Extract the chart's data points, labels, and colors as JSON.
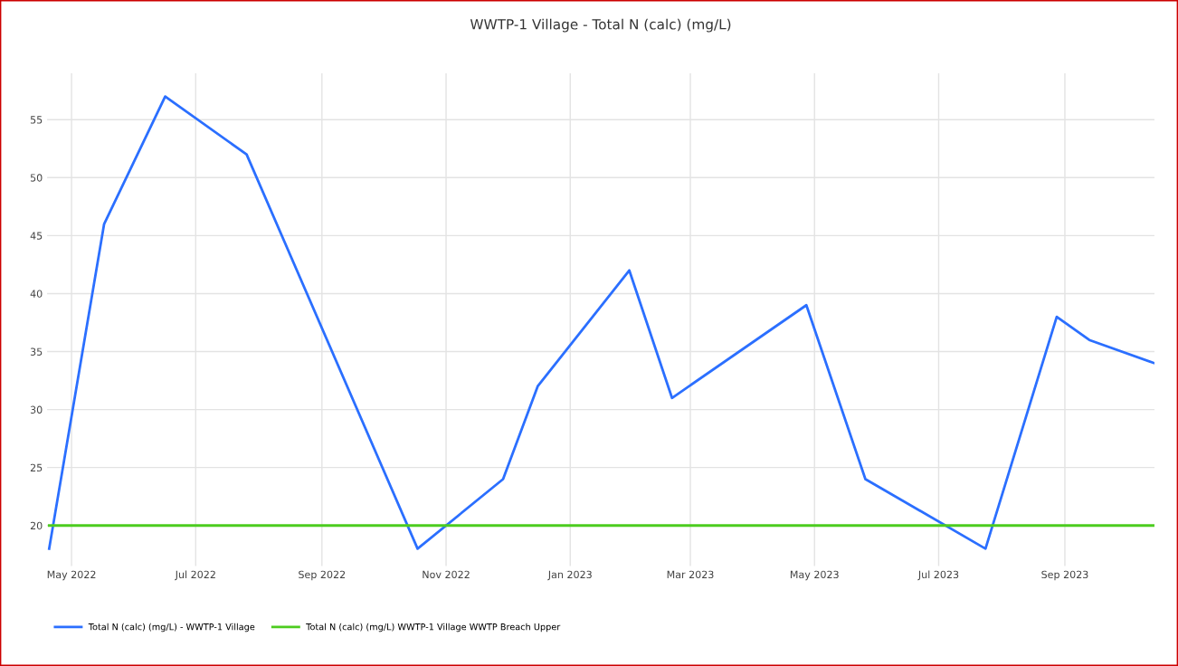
{
  "chart_data": {
    "type": "line",
    "title": "WWTP-1 Village - Total N (calc) (mg/L)",
    "series": [
      {
        "name": "Total N (calc) (mg/L) - WWTP-1 Village",
        "color": "#2b6fff",
        "x": [
          "2022-04-20",
          "2022-05-17",
          "2022-06-16",
          "2022-07-26",
          "2022-10-18",
          "2022-11-29",
          "2022-12-16",
          "2023-01-30",
          "2023-02-20",
          "2023-04-27",
          "2023-05-26",
          "2023-07-24",
          "2023-08-28",
          "2023-09-13",
          "2023-10-15"
        ],
        "values": [
          18,
          46,
          57,
          52,
          18,
          24,
          32,
          42,
          31,
          39,
          24,
          18,
          38,
          36,
          34
        ]
      },
      {
        "name": "Total N (calc) (mg/L) WWTP-1 Village WWTP Breach Upper",
        "color": "#4ccc1f",
        "x": [
          "2022-04-20",
          "2023-10-15"
        ],
        "values": [
          20,
          20
        ]
      }
    ],
    "xlim": [
      "2022-04-19",
      "2023-10-15"
    ],
    "xticks": [
      {
        "value": "2022-05",
        "label": "May 2022"
      },
      {
        "value": "2022-07",
        "label": "Jul 2022"
      },
      {
        "value": "2022-09",
        "label": "Sep 2022"
      },
      {
        "value": "2022-11",
        "label": "Nov 2022"
      },
      {
        "value": "2023-01",
        "label": "Jan 2023"
      },
      {
        "value": "2023-03",
        "label": "Mar 2023"
      },
      {
        "value": "2023-05",
        "label": "May 2023"
      },
      {
        "value": "2023-07",
        "label": "Jul 2023"
      },
      {
        "value": "2023-09",
        "label": "Sep 2023"
      }
    ],
    "ylim": [
      16.5,
      59
    ],
    "yticks": [
      20,
      25,
      30,
      35,
      40,
      45,
      50,
      55
    ],
    "grid": true,
    "legend": "bottom left",
    "marker": "none",
    "line_style": "solid"
  }
}
